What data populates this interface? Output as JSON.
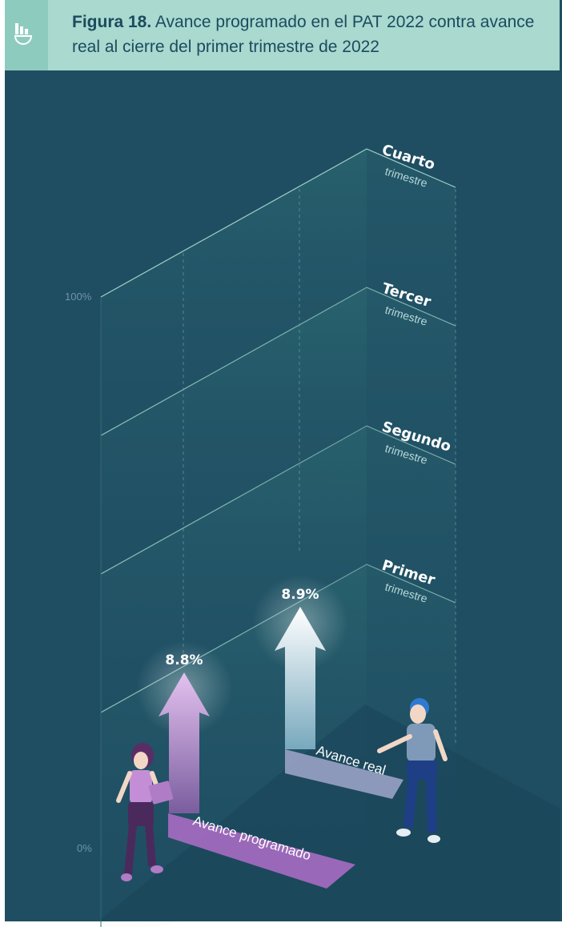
{
  "header": {
    "figure_label": "Figura 18.",
    "title": "Avance programado en el PAT 2022 contra avance real al cierre del primer trimestre de 2022"
  },
  "chart_data": {
    "type": "bar",
    "y_axis": {
      "min_label": "0%",
      "max_label": "100%",
      "range": [
        0,
        100
      ]
    },
    "quarters": [
      {
        "name": "Primer",
        "sub": "trimestre"
      },
      {
        "name": "Segundo",
        "sub": "trimestre"
      },
      {
        "name": "Tercer",
        "sub": "trimestre"
      },
      {
        "name": "Cuarto",
        "sub": "trimestre"
      }
    ],
    "series": [
      {
        "name": "Avance programado",
        "value": 8.8,
        "value_label": "8.8%",
        "color": "#b07cc6"
      },
      {
        "name": "Avance real",
        "value": 8.9,
        "value_label": "8.9%",
        "color": "#dfeef4"
      }
    ]
  }
}
